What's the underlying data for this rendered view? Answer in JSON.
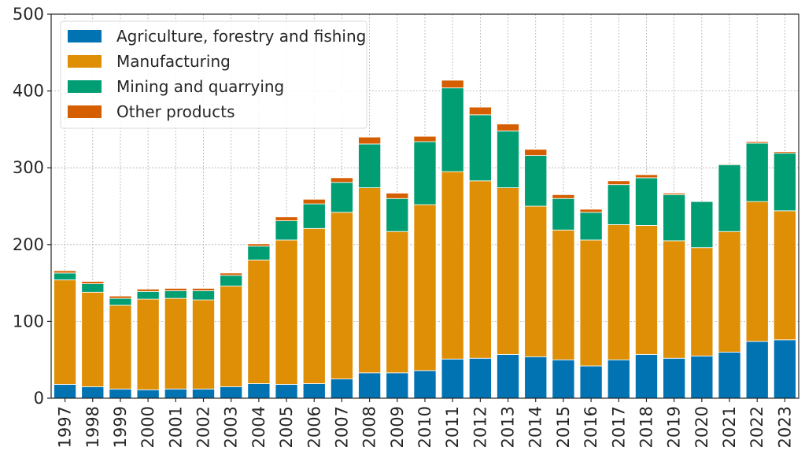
{
  "chart_data": {
    "type": "bar",
    "stacked": true,
    "title": "",
    "xlabel": "",
    "ylabel": "",
    "ylim": [
      0,
      500
    ],
    "yticks": [
      0,
      100,
      200,
      300,
      400,
      500
    ],
    "grid": true,
    "legend_position": "top-left",
    "categories": [
      "1997",
      "1998",
      "1999",
      "2000",
      "2001",
      "2002",
      "2003",
      "2004",
      "2005",
      "2006",
      "2007",
      "2008",
      "2009",
      "2010",
      "2011",
      "2012",
      "2013",
      "2014",
      "2015",
      "2016",
      "2017",
      "2018",
      "2019",
      "2020",
      "2021",
      "2022",
      "2023"
    ],
    "series": [
      {
        "name": "Agriculture, forestry and fishing",
        "color": "#0173b2",
        "values": [
          18,
          15,
          12,
          11,
          12,
          12,
          15,
          19,
          18,
          19,
          25,
          33,
          33,
          36,
          51,
          52,
          57,
          54,
          50,
          42,
          50,
          57,
          52,
          55,
          60,
          74,
          76
        ]
      },
      {
        "name": "Manufacturing",
        "color": "#de8f05",
        "values": [
          136,
          123,
          109,
          118,
          118,
          116,
          131,
          161,
          188,
          202,
          217,
          241,
          184,
          216,
          244,
          231,
          217,
          196,
          169,
          164,
          176,
          168,
          153,
          141,
          157,
          182,
          168
        ]
      },
      {
        "name": "Mining and quarrying",
        "color": "#029e73",
        "values": [
          9,
          11,
          9,
          10,
          10,
          12,
          14,
          18,
          25,
          32,
          39,
          57,
          43,
          82,
          109,
          86,
          74,
          66,
          41,
          36,
          52,
          62,
          60,
          60,
          87,
          76,
          75
        ]
      },
      {
        "name": "Other products",
        "color": "#d55e00",
        "values": [
          3,
          3,
          3,
          3,
          3,
          3,
          3,
          3,
          5,
          6,
          6,
          9,
          7,
          7,
          10,
          10,
          9,
          8,
          5,
          4,
          5,
          4,
          2,
          0,
          1,
          2,
          2
        ]
      }
    ]
  }
}
